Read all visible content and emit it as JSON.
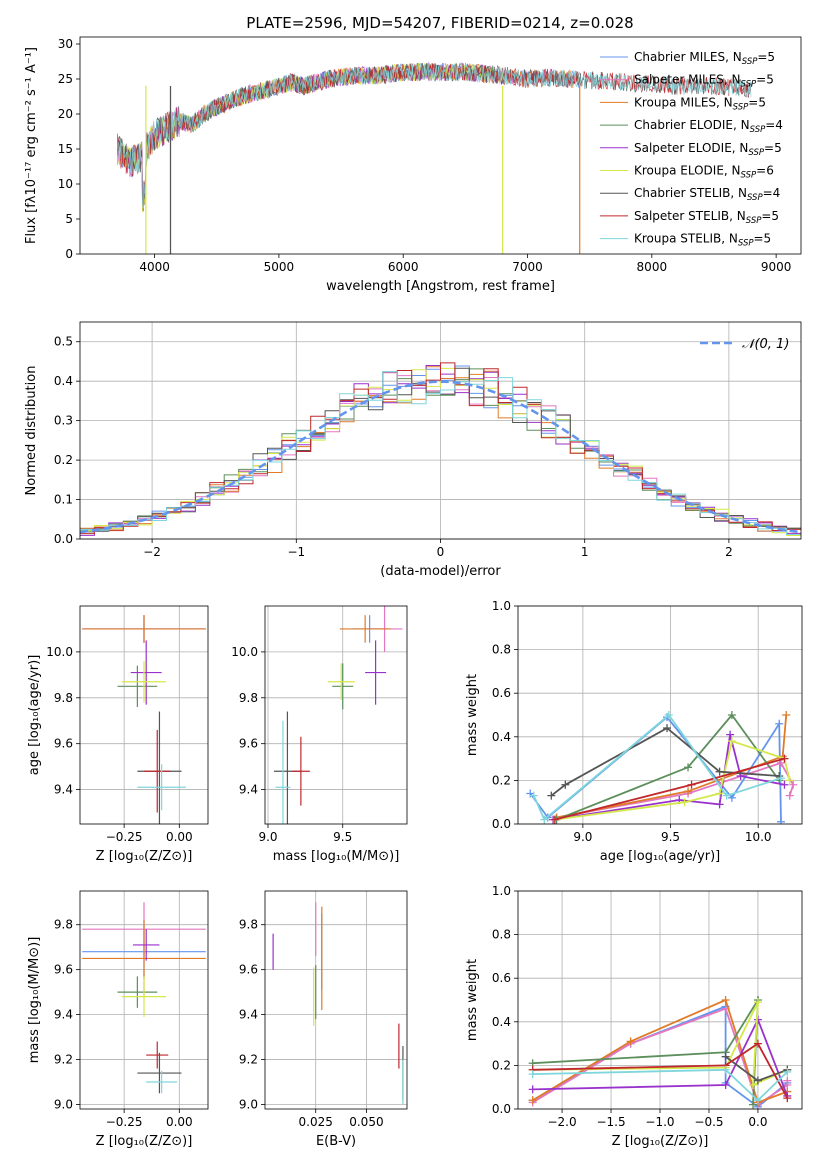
{
  "figure": {
    "title": "PLATE=2596, MJD=54207, FIBERID=0214, z=0.028"
  },
  "legend_labels": [
    {
      "text": "Chabrier MILES, N",
      "sub": "SSP",
      "suffix": "=5",
      "color": "#6495ed"
    },
    {
      "text": "Salpeter MILES, N",
      "sub": "SSP",
      "suffix": "=5",
      "color": "#e377c2"
    },
    {
      "text": "Kroupa MILES, N",
      "sub": "SSP",
      "suffix": "=5",
      "color": "#e07b28"
    },
    {
      "text": "Chabrier ELODIE, N",
      "sub": "SSP",
      "suffix": "=4",
      "color": "#5c8f5c"
    },
    {
      "text": "Salpeter ELODIE, N",
      "sub": "SSP",
      "suffix": "=5",
      "color": "#9932cc"
    },
    {
      "text": "Kroupa ELODIE, N",
      "sub": "SSP",
      "suffix": "=6",
      "color": "#d4e84a"
    },
    {
      "text": "Chabrier STELIB, N",
      "sub": "SSP",
      "suffix": "=4",
      "color": "#555555"
    },
    {
      "text": "Salpeter STELIB, N",
      "sub": "SSP",
      "suffix": "=5",
      "color": "#c0282d"
    },
    {
      "text": "Kroupa STELIB, N",
      "sub": "SSP",
      "suffix": "=5",
      "color": "#7fd6dc"
    }
  ],
  "chart_data": [
    {
      "id": "spectrum",
      "type": "line",
      "xlabel": "wavelength [Angstrom, rest frame]",
      "ylabel": "Flux [fλ10⁻¹⁷ erg cm⁻² s⁻¹ A⁻¹]",
      "xlim": [
        3400,
        9200
      ],
      "ylim": [
        0,
        31
      ],
      "xticks": [
        4000,
        5000,
        6000,
        7000,
        8000,
        9000
      ],
      "yticks": [
        0,
        5,
        10,
        15,
        20,
        25,
        30
      ],
      "grid": false,
      "legend": "upper right",
      "envelope": [
        [
          3700,
          15
        ],
        [
          3800,
          13
        ],
        [
          3900,
          14
        ],
        [
          4000,
          17
        ],
        [
          4100,
          18
        ],
        [
          4200,
          19
        ],
        [
          4300,
          18.5
        ],
        [
          4400,
          20
        ],
        [
          4500,
          21
        ],
        [
          4700,
          22.5
        ],
        [
          4900,
          23.5
        ],
        [
          5100,
          24.5
        ],
        [
          5200,
          24
        ],
        [
          5400,
          25
        ],
        [
          5600,
          25.5
        ],
        [
          5800,
          25.5
        ],
        [
          6000,
          26
        ],
        [
          6200,
          26
        ],
        [
          6500,
          26
        ],
        [
          6800,
          25.5
        ],
        [
          7000,
          25
        ],
        [
          7200,
          25.2
        ],
        [
          7500,
          24.8
        ],
        [
          7800,
          24.5
        ],
        [
          8000,
          24.3
        ],
        [
          8200,
          24
        ],
        [
          8500,
          24
        ],
        [
          8800,
          23.5
        ]
      ],
      "series": [
        {
          "name": "Chabrier MILES, NSSP=5",
          "color": "#6495ed",
          "xmax": 7420
        },
        {
          "name": "Salpeter MILES, NSSP=5",
          "color": "#e377c2",
          "xmax": 7420
        },
        {
          "name": "Kroupa MILES, NSSP=5",
          "color": "#e07b28",
          "xmax": 7420
        },
        {
          "name": "Chabrier ELODIE, NSSP=4",
          "color": "#5c8f5c",
          "xmax": 6800
        },
        {
          "name": "Salpeter ELODIE, NSSP=5",
          "color": "#9932cc",
          "xmax": 6800
        },
        {
          "name": "Kroupa ELODIE, NSSP=6",
          "color": "#d4e84a",
          "xmax": 6800
        },
        {
          "name": "Chabrier STELIB, NSSP=4",
          "color": "#555555",
          "xmax": 8800
        },
        {
          "name": "Salpeter STELIB, NSSP=5",
          "color": "#c0282d",
          "xmax": 8800
        },
        {
          "name": "Kroupa STELIB, NSSP=5",
          "color": "#7fd6dc",
          "xmax": 8800
        }
      ]
    },
    {
      "id": "residuals",
      "type": "line",
      "xlabel": "(data-model)/error",
      "ylabel": "Normed distribution",
      "xlim": [
        -2.5,
        2.5
      ],
      "ylim": [
        0,
        0.55
      ],
      "xticks": [
        -2,
        -1,
        0,
        1,
        2
      ],
      "yticks": [
        0.0,
        0.1,
        0.2,
        0.3,
        0.4,
        0.5
      ],
      "grid": true,
      "legend": "upper right",
      "reference": {
        "name": "𝒩(0, 1)",
        "color": "#6495ed",
        "dash": true
      },
      "bin_width": 0.1,
      "series_colors": [
        "#6495ed",
        "#e377c2",
        "#e07b28",
        "#5c8f5c",
        "#9932cc",
        "#d4e84a",
        "#555555",
        "#c0282d",
        "#7fd6dc"
      ]
    },
    {
      "id": "age-vs-Z",
      "type": "scatter",
      "xlabel": "Z [log₁₀(Z/Z⊙)]",
      "ylabel": "age  [log₁₀(age/yr)]",
      "xlim": [
        -0.45,
        0.13
      ],
      "ylim": [
        9.25,
        10.2
      ],
      "xticks": [
        -0.25,
        0.0
      ],
      "yticks": [
        9.4,
        9.6,
        9.8,
        10.0
      ],
      "grid": true,
      "points": [
        {
          "x": -0.16,
          "y": 10.1,
          "xerr": 0.28,
          "yerr": 0.06,
          "color": "#6495ed"
        },
        {
          "x": -0.16,
          "y": 10.1,
          "xerr": 0.28,
          "yerr": 0.06,
          "color": "#e377c2"
        },
        {
          "x": -0.16,
          "y": 10.1,
          "xerr": 0.28,
          "yerr": 0.06,
          "color": "#e07b28"
        },
        {
          "x": -0.19,
          "y": 9.85,
          "xerr": 0.09,
          "yerr": 0.09,
          "color": "#5c8f5c"
        },
        {
          "x": -0.15,
          "y": 9.91,
          "xerr": 0.07,
          "yerr": 0.14,
          "color": "#9932cc"
        },
        {
          "x": -0.16,
          "y": 9.87,
          "xerr": 0.1,
          "yerr": 0.09,
          "color": "#d4e84a"
        },
        {
          "x": -0.09,
          "y": 9.48,
          "xerr": 0.1,
          "yerr": 0.26,
          "color": "#555555"
        },
        {
          "x": -0.1,
          "y": 9.48,
          "xerr": 0.06,
          "yerr": 0.18,
          "color": "#c0282d"
        },
        {
          "x": -0.08,
          "y": 9.41,
          "xerr": 0.11,
          "yerr": 0.1,
          "color": "#7fd6dc"
        }
      ]
    },
    {
      "id": "age-vs-mass",
      "type": "scatter",
      "xlabel": "mass [log₁₀(M/M⊙)]",
      "ylabel": "",
      "xlim": [
        8.98,
        9.93
      ],
      "ylim": [
        9.25,
        10.2
      ],
      "xticks": [
        9.0,
        9.5
      ],
      "yticks": [
        9.4,
        9.6,
        9.8,
        10.0
      ],
      "grid": true,
      "points": [
        {
          "x": 9.68,
          "y": 10.1,
          "xerr": 0.12,
          "yerr": 0.06,
          "color": "#6495ed"
        },
        {
          "x": 9.78,
          "y": 10.1,
          "xerr": 0.12,
          "yerr": 0.1,
          "color": "#e377c2"
        },
        {
          "x": 9.65,
          "y": 10.1,
          "xerr": 0.17,
          "yerr": 0.06,
          "color": "#e07b28"
        },
        {
          "x": 9.5,
          "y": 9.85,
          "xerr": 0.07,
          "yerr": 0.1,
          "color": "#5c8f5c"
        },
        {
          "x": 9.72,
          "y": 9.91,
          "xerr": 0.07,
          "yerr": 0.14,
          "color": "#9932cc"
        },
        {
          "x": 9.49,
          "y": 9.87,
          "xerr": 0.09,
          "yerr": 0.08,
          "color": "#d4e84a"
        },
        {
          "x": 9.13,
          "y": 9.48,
          "xerr": 0.09,
          "yerr": 0.26,
          "color": "#555555"
        },
        {
          "x": 9.22,
          "y": 9.48,
          "xerr": 0.06,
          "yerr": 0.15,
          "color": "#c0282d"
        },
        {
          "x": 9.1,
          "y": 9.41,
          "xerr": 0.05,
          "yerr": 0.29,
          "color": "#7fd6dc"
        }
      ]
    },
    {
      "id": "weight-vs-age",
      "type": "line",
      "xlabel": "age  [log₁₀(age/yr)]",
      "ylabel": "mass weight",
      "xlim": [
        8.63,
        10.25
      ],
      "ylim": [
        0,
        1
      ],
      "xticks": [
        9.0,
        9.5,
        10.0
      ],
      "yticks": [
        0.0,
        0.2,
        0.4,
        0.6,
        0.8,
        1.0
      ],
      "grid": true,
      "series": [
        {
          "color": "#6495ed",
          "x": [
            8.7,
            8.8,
            9.48,
            9.85,
            10.12,
            10.13
          ],
          "y": [
            0.14,
            0.03,
            0.49,
            0.12,
            0.46,
            0.01
          ]
        },
        {
          "color": "#e377c2",
          "x": [
            8.85,
            9.6,
            10.13,
            10.2,
            10.18
          ],
          "y": [
            0.03,
            0.14,
            0.28,
            0.18,
            0.13
          ]
        },
        {
          "color": "#e07b28",
          "x": [
            8.85,
            9.6,
            10.14,
            10.16
          ],
          "y": [
            0.03,
            0.15,
            0.31,
            0.5
          ]
        },
        {
          "color": "#5c8f5c",
          "x": [
            8.85,
            9.6,
            9.85,
            10.12
          ],
          "y": [
            0.02,
            0.26,
            0.5,
            0.2
          ]
        },
        {
          "color": "#9932cc",
          "x": [
            8.83,
            9.55,
            9.78,
            9.84,
            9.9,
            10.15
          ],
          "y": [
            0.02,
            0.11,
            0.09,
            0.41,
            0.22,
            0.18
          ]
        },
        {
          "color": "#d4e84a",
          "x": [
            8.84,
            9.58,
            9.78,
            9.85,
            10.15,
            10.18
          ],
          "y": [
            0.02,
            0.1,
            0.14,
            0.38,
            0.3,
            0.2
          ]
        },
        {
          "color": "#555555",
          "x": [
            8.82,
            8.9,
            9.48,
            9.78,
            10.12
          ],
          "y": [
            0.13,
            0.18,
            0.44,
            0.24,
            0.22
          ]
        },
        {
          "color": "#c0282d",
          "x": [
            8.84,
            9.62,
            10.15
          ],
          "y": [
            0.02,
            0.18,
            0.3
          ]
        },
        {
          "color": "#7fd6dc",
          "x": [
            8.72,
            8.78,
            9.49,
            9.82,
            10.13
          ],
          "y": [
            0.13,
            0.02,
            0.5,
            0.13,
            0.21
          ]
        }
      ]
    },
    {
      "id": "mass-vs-Z",
      "type": "scatter",
      "xlabel": "Z [log₁₀(Z/Z⊙)]",
      "ylabel": "mass [log₁₀(M/M⊙)]",
      "xlim": [
        -0.45,
        0.13
      ],
      "ylim": [
        8.98,
        9.95
      ],
      "xticks": [
        -0.25,
        0.0
      ],
      "yticks": [
        9.0,
        9.2,
        9.4,
        9.6,
        9.8
      ],
      "grid": true,
      "points": [
        {
          "x": -0.16,
          "y": 9.68,
          "xerr": 0.28,
          "yerr": 0.12,
          "color": "#6495ed"
        },
        {
          "x": -0.16,
          "y": 9.78,
          "xerr": 0.28,
          "yerr": 0.12,
          "color": "#e377c2"
        },
        {
          "x": -0.16,
          "y": 9.65,
          "xerr": 0.28,
          "yerr": 0.17,
          "color": "#e07b28"
        },
        {
          "x": -0.19,
          "y": 9.5,
          "xerr": 0.09,
          "yerr": 0.07,
          "color": "#5c8f5c"
        },
        {
          "x": -0.15,
          "y": 9.71,
          "xerr": 0.06,
          "yerr": 0.07,
          "color": "#9932cc"
        },
        {
          "x": -0.16,
          "y": 9.48,
          "xerr": 0.1,
          "yerr": 0.09,
          "color": "#d4e84a"
        },
        {
          "x": -0.09,
          "y": 9.14,
          "xerr": 0.1,
          "yerr": 0.09,
          "color": "#555555"
        },
        {
          "x": -0.1,
          "y": 9.22,
          "xerr": 0.05,
          "yerr": 0.06,
          "color": "#c0282d"
        },
        {
          "x": -0.08,
          "y": 9.1,
          "xerr": 0.07,
          "yerr": 0.05,
          "color": "#7fd6dc"
        }
      ]
    },
    {
      "id": "mass-vs-ebv",
      "type": "scatter",
      "xlabel": "E(B-V)",
      "ylabel": "",
      "xlim": [
        0.0,
        0.07
      ],
      "ylim": [
        8.98,
        9.95
      ],
      "xticks": [
        0.025,
        0.05
      ],
      "yticks": [
        9.0,
        9.2,
        9.4,
        9.6,
        9.8
      ],
      "grid": true,
      "points": [
        {
          "x": 0.028,
          "y": 9.68,
          "xerr": 0.0,
          "yerr": 0.17,
          "color": "#6495ed"
        },
        {
          "x": 0.025,
          "y": 9.78,
          "xerr": 0.0,
          "yerr": 0.12,
          "color": "#e377c2"
        },
        {
          "x": 0.028,
          "y": 9.65,
          "xerr": 0.0,
          "yerr": 0.23,
          "color": "#e07b28"
        },
        {
          "x": 0.025,
          "y": 9.5,
          "xerr": 0.0,
          "yerr": 0.12,
          "color": "#5c8f5c"
        },
        {
          "x": 0.004,
          "y": 9.68,
          "xerr": 0.0,
          "yerr": 0.08,
          "color": "#9932cc"
        },
        {
          "x": 0.024,
          "y": 9.48,
          "xerr": 0.0,
          "yerr": 0.13,
          "color": "#d4e84a"
        },
        {
          "x": 0.068,
          "y": 9.14,
          "xerr": 0.0,
          "yerr": 0.12,
          "color": "#555555"
        },
        {
          "x": 0.066,
          "y": 9.26,
          "xerr": 0.0,
          "yerr": 0.1,
          "color": "#c0282d"
        },
        {
          "x": 0.068,
          "y": 9.1,
          "xerr": 0.0,
          "yerr": 0.1,
          "color": "#7fd6dc"
        }
      ]
    },
    {
      "id": "weight-vs-Z",
      "type": "line",
      "xlabel": "Z [log₁₀(Z/Z⊙)]",
      "ylabel": "mass weight",
      "xlim": [
        -2.45,
        0.45
      ],
      "ylim": [
        0,
        1
      ],
      "xticks": [
        -2.0,
        -1.5,
        -1.0,
        -0.5,
        0.0
      ],
      "yticks": [
        0.0,
        0.2,
        0.4,
        0.6,
        0.8,
        1.0
      ],
      "grid": true,
      "series": [
        {
          "color": "#6495ed",
          "x": [
            -2.3,
            -1.3,
            -0.33,
            -0.33,
            0.0,
            0.3
          ],
          "y": [
            0.04,
            0.3,
            0.47,
            0.12,
            0.01,
            0.12
          ]
        },
        {
          "color": "#e377c2",
          "x": [
            -2.3,
            -1.3,
            -0.33,
            0.0,
            0.3,
            0.3
          ],
          "y": [
            0.03,
            0.3,
            0.46,
            0.02,
            0.11,
            0.13
          ]
        },
        {
          "color": "#e07b28",
          "x": [
            -2.3,
            -1.3,
            -0.33,
            0.0,
            0.3
          ],
          "y": [
            0.04,
            0.31,
            0.5,
            0.03,
            0.08
          ]
        },
        {
          "color": "#5c8f5c",
          "x": [
            -2.3,
            -0.33,
            0.0,
            -0.05
          ],
          "y": [
            0.21,
            0.26,
            0.5,
            0.02
          ]
        },
        {
          "color": "#9932cc",
          "x": [
            -2.3,
            -0.33,
            0.0,
            0.3
          ],
          "y": [
            0.09,
            0.11,
            0.41,
            0.06
          ]
        },
        {
          "color": "#d4e84a",
          "x": [
            -2.3,
            -0.33,
            0.0,
            -0.05,
            0.3
          ],
          "y": [
            0.18,
            0.19,
            0.49,
            0.11,
            0.18
          ]
        },
        {
          "color": "#555555",
          "x": [
            -0.33,
            0.0,
            0.3
          ],
          "y": [
            0.24,
            0.13,
            0.18
          ]
        },
        {
          "color": "#c0282d",
          "x": [
            -2.3,
            -0.33,
            0.0,
            0.3
          ],
          "y": [
            0.18,
            0.2,
            0.3,
            0.05
          ]
        },
        {
          "color": "#7fd6dc",
          "x": [
            -2.3,
            -0.33,
            0.0,
            0.3
          ],
          "y": [
            0.16,
            0.18,
            0.04,
            0.17
          ]
        }
      ]
    }
  ]
}
